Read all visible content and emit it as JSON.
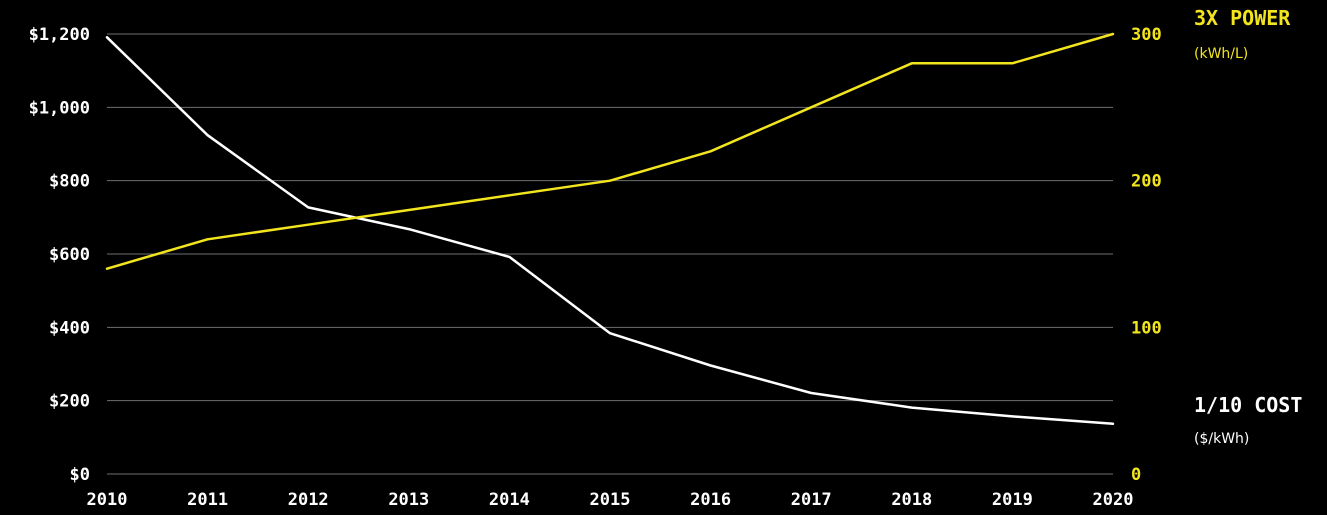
{
  "chart_data": {
    "type": "line",
    "x": [
      2010,
      2011,
      2012,
      2013,
      2014,
      2015,
      2016,
      2017,
      2018,
      2019,
      2020
    ],
    "x_tick_labels": [
      "2010",
      "2011",
      "2012",
      "2013",
      "2014",
      "2015",
      "2016",
      "2017",
      "2018",
      "2019",
      "2020"
    ],
    "left_axis": {
      "ylim": [
        0,
        1200
      ],
      "ticks": [
        0,
        200,
        400,
        600,
        800,
        1000,
        1200
      ],
      "tick_labels": [
        "$0",
        "$200",
        "$400",
        "$600",
        "$800",
        "$1,000",
        "$1,200"
      ]
    },
    "right_axis": {
      "ylim": [
        0,
        300
      ],
      "ticks": [
        0,
        100,
        200,
        300
      ],
      "tick_labels": [
        "0",
        "100",
        "200",
        "300"
      ]
    },
    "grid": true,
    "series": [
      {
        "name": "1/10 COST",
        "unit": "($/kWh)",
        "axis": "left",
        "color": "#ffffff",
        "values": [
          1191,
          924,
          727,
          668,
          592,
          384,
          296,
          221,
          181,
          157,
          137
        ]
      },
      {
        "name": "3X POWER",
        "unit": "(kWh/L)",
        "axis": "right",
        "color": "#f2e51e",
        "values": [
          140,
          160,
          170,
          180,
          190,
          200,
          220,
          250,
          280,
          280,
          300
        ]
      }
    ]
  }
}
